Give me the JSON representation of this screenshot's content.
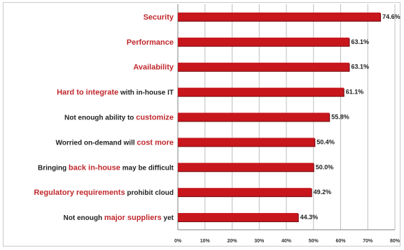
{
  "chart_data": {
    "type": "bar",
    "orientation": "horizontal",
    "title": "",
    "xlabel": "",
    "ylabel": "",
    "categories": [
      "Security",
      "Performance",
      "Availability",
      "Hard to integrate with in-house IT",
      "Not enough ability to customize",
      "Worried on-demand will cost more",
      "Bringing back in-house may be difficult",
      "Regulatory requirements prohibit cloud",
      "Not enough major suppliers yet"
    ],
    "category_parts": [
      [
        {
          "t": "Security",
          "e": true
        }
      ],
      [
        {
          "t": "Performance",
          "e": true
        }
      ],
      [
        {
          "t": "Availability",
          "e": true
        }
      ],
      [
        {
          "t": "Hard to integrate",
          "e": true
        },
        {
          "t": " with in-house IT",
          "e": false
        }
      ],
      [
        {
          "t": "Not enough ability to ",
          "e": false
        },
        {
          "t": "customize",
          "e": true
        }
      ],
      [
        {
          "t": "Worried on-demand will ",
          "e": false
        },
        {
          "t": "cost more",
          "e": true
        }
      ],
      [
        {
          "t": "Bringing ",
          "e": false
        },
        {
          "t": "back in-house",
          "e": true
        },
        {
          "t": " may be difficult",
          "e": false
        }
      ],
      [
        {
          "t": "Regulatory requirements",
          "e": true
        },
        {
          "t": " prohibit cloud",
          "e": false
        }
      ],
      [
        {
          "t": "Not enough ",
          "e": false
        },
        {
          "t": "major suppliers",
          "e": true
        },
        {
          "t": " yet",
          "e": false
        }
      ]
    ],
    "values": [
      74.6,
      63.1,
      63.1,
      61.1,
      55.8,
      50.4,
      50.0,
      49.2,
      44.3
    ],
    "value_labels": [
      "74.6%",
      "63.1%",
      "63.1%",
      "61.1%",
      "55.8%",
      "50.4%",
      "50.0%",
      "49.2%",
      "44.3%"
    ],
    "xlim": [
      0,
      80
    ],
    "xticks": [
      0,
      10,
      20,
      30,
      40,
      50,
      60,
      70,
      80
    ],
    "xtick_labels": [
      "0%",
      "10%",
      "20%",
      "30%",
      "40%",
      "50%",
      "60%",
      "70%",
      "80%"
    ],
    "grid": true,
    "colors": {
      "bar": "#c8161d",
      "bar_edge": "#6b0a0e",
      "emphasis_text": "#c0282d",
      "grid": "#bdbdbd"
    }
  }
}
